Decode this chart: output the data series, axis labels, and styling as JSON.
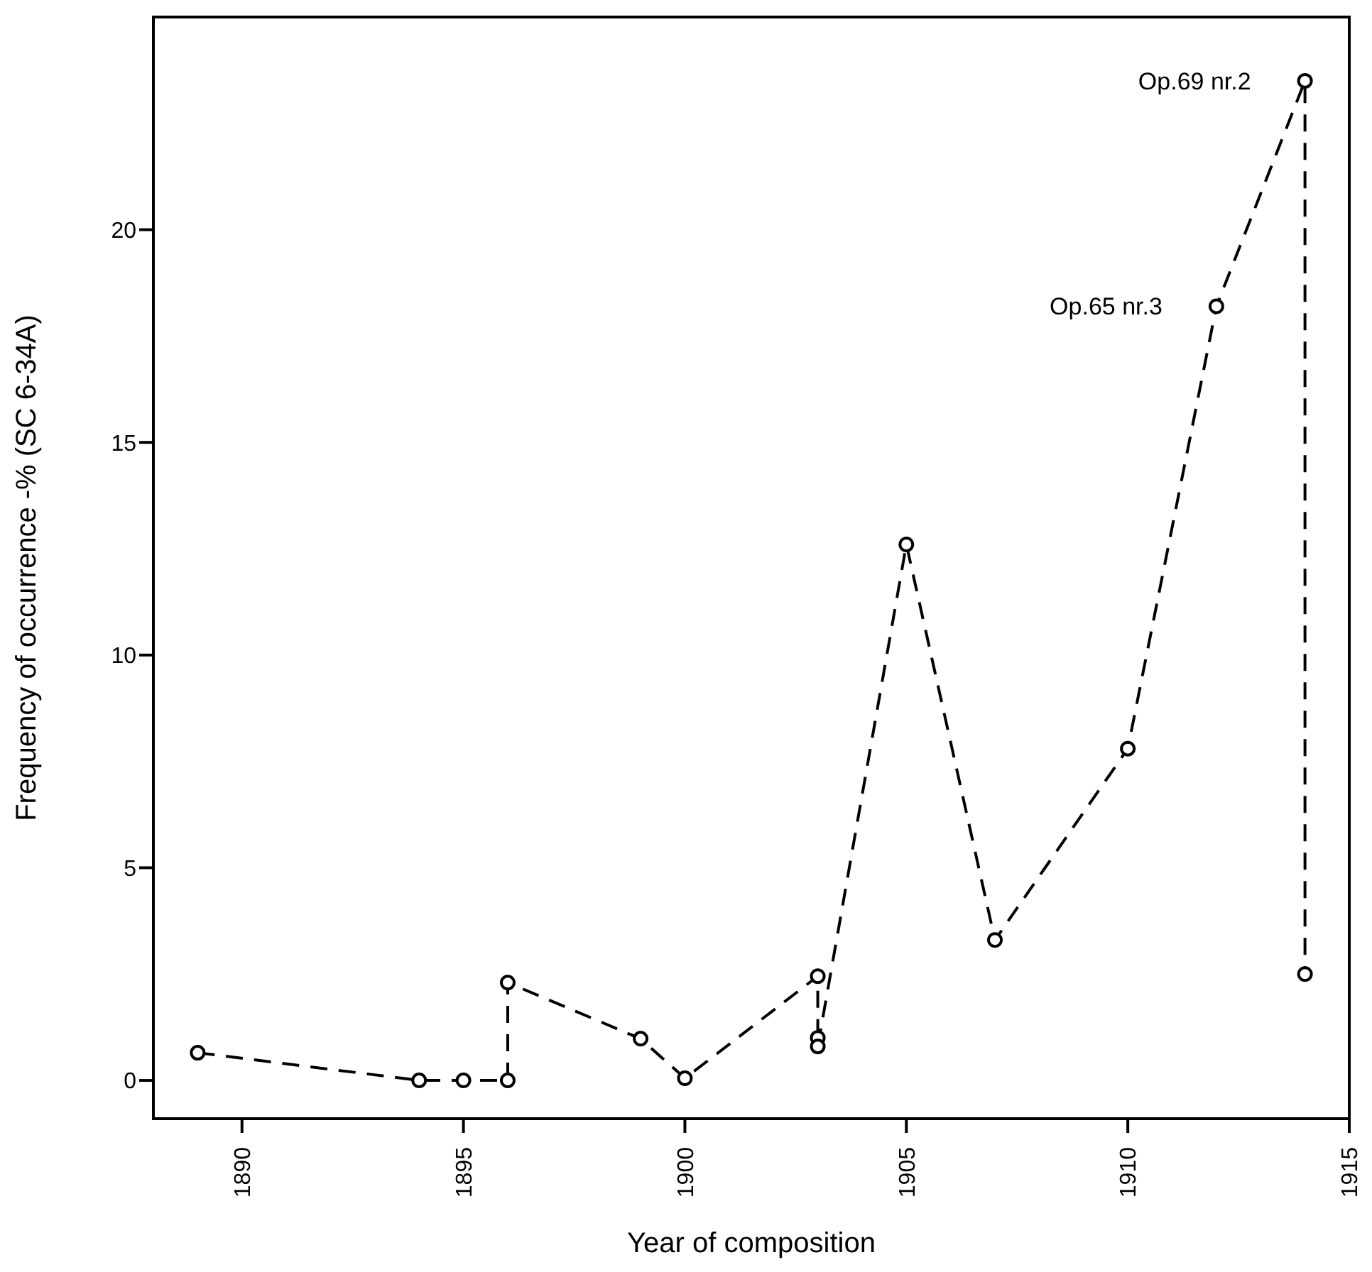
{
  "chart_data": {
    "type": "line",
    "xlabel": "Year of composition",
    "ylabel": "Frequency of occurrence -% (SC 6-34A)",
    "x": [
      1889,
      1894,
      1895,
      1896,
      1896,
      1899,
      1900,
      1903,
      1903,
      1903,
      1905,
      1907,
      1910,
      1912,
      1914,
      1914
    ],
    "series": [
      {
        "color": "#000000",
        "values": [
          0.65,
          0,
          0,
          0,
          2.3,
          0.98,
          0.05,
          2.45,
          1.0,
          0.8,
          12.6,
          3.3,
          7.8,
          18.2,
          23.5,
          2.5
        ]
      }
    ],
    "xlim": [
      1888,
      1915
    ],
    "xticks": [
      1890,
      1895,
      1900,
      1905,
      1910,
      1915
    ],
    "ylim": [
      -0.9,
      25
    ],
    "yticks": [
      0,
      5,
      10,
      15,
      20
    ],
    "marker": "circle",
    "line_style": "dashed",
    "grid": false,
    "legend": false,
    "annotations": [
      {
        "text": "Op.69 nr.2",
        "x": 1914,
        "y": 23.5
      },
      {
        "text": "Op.65 nr.3",
        "x": 1912,
        "y": 18.2
      }
    ]
  }
}
